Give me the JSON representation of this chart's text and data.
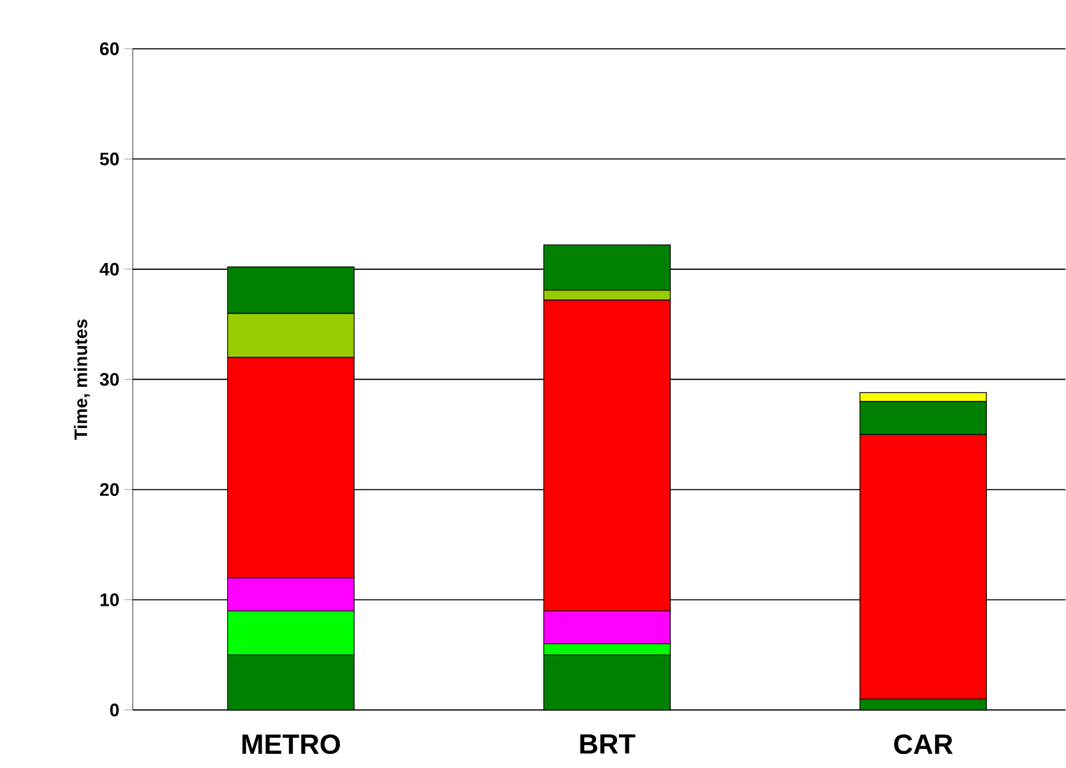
{
  "chart_data": {
    "type": "bar",
    "stacked": true,
    "ylabel": "Time, minutes",
    "categories": [
      "METRO",
      "BRT",
      "CAR"
    ],
    "series": [
      {
        "color": "#008000",
        "values": [
          5,
          5,
          1
        ]
      },
      {
        "color": "#00ff00",
        "values": [
          4,
          1,
          null
        ]
      },
      {
        "color": "#ff00ff",
        "values": [
          3,
          3,
          null
        ]
      },
      {
        "color": "#ff0000",
        "values": [
          20,
          28.2,
          24
        ]
      },
      {
        "color": "#99cc00",
        "values": [
          4,
          0.9,
          null
        ]
      },
      {
        "color": "#008000",
        "values": [
          4.2,
          4.1,
          3
        ]
      },
      {
        "color": "#ffff00",
        "values": [
          null,
          null,
          0.8
        ]
      }
    ],
    "ylim": [
      0,
      60
    ],
    "yticks": [
      0,
      10,
      20,
      30,
      40,
      50,
      60
    ],
    "grid": "y"
  }
}
